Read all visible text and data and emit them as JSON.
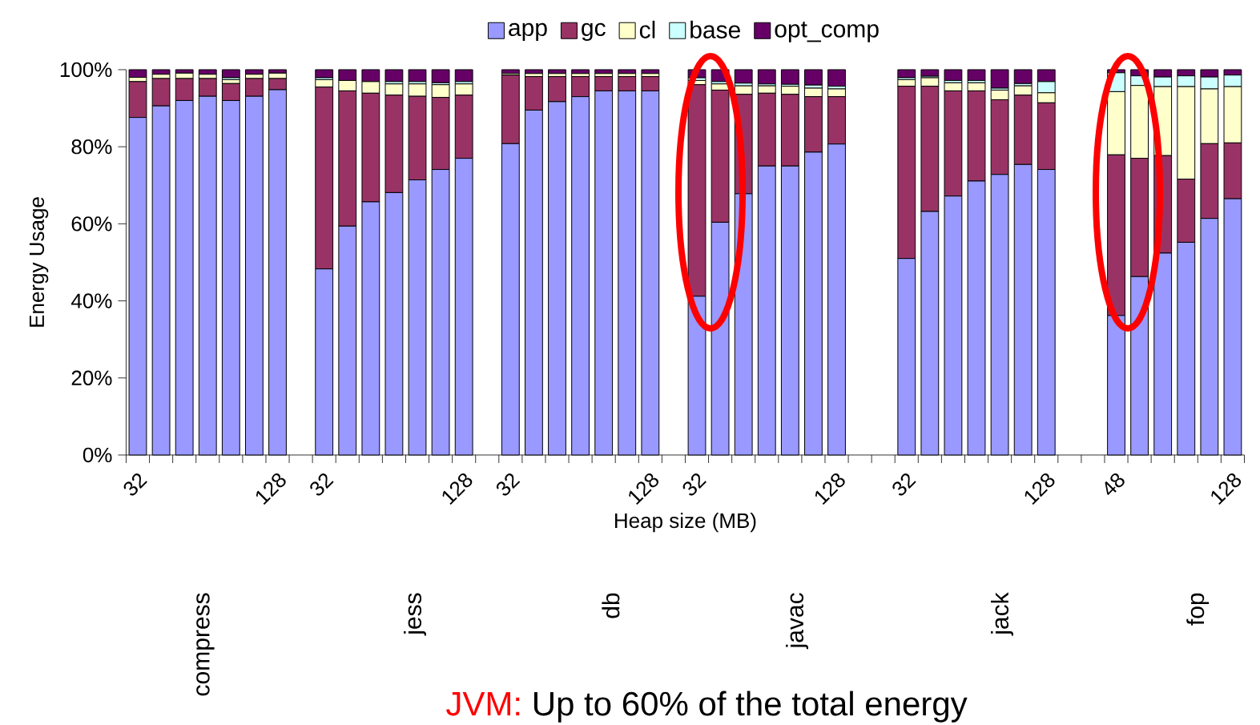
{
  "chart_data": {
    "type": "bar",
    "stacked": true,
    "xlabel": "Heap size (MB)",
    "ylabel": "Energy Usage",
    "legend": "top",
    "grid": false,
    "categories": [
      "32",
      null,
      null,
      null,
      null,
      null,
      "128",
      null,
      "32",
      null,
      null,
      null,
      null,
      null,
      "128",
      null,
      "32",
      null,
      null,
      null,
      null,
      null,
      "128",
      null,
      "32",
      null,
      null,
      null,
      null,
      null,
      "128",
      null,
      null,
      "32",
      null,
      null,
      null,
      null,
      null,
      "128",
      null,
      null,
      "48",
      null,
      null,
      null,
      null,
      "128"
    ],
    "series": [
      {
        "name": "app",
        "color": "#9999ff",
        "values": [
          87.6,
          90.6,
          92.0,
          93.1,
          92.0,
          93.1,
          94.8,
          null,
          48.3,
          59.4,
          65.7,
          68.1,
          71.4,
          74.1,
          77.0,
          null,
          80.8,
          89.5,
          91.7,
          93.0,
          94.5,
          94.5,
          94.5,
          null,
          41.2,
          60.4,
          67.8,
          75.0,
          75.0,
          78.6,
          80.7,
          null,
          null,
          51.0,
          63.2,
          67.2,
          71.1,
          72.8,
          75.4,
          74.1,
          null,
          null,
          36.2,
          46.3,
          52.4,
          55.2,
          61.4,
          66.5
        ]
      },
      {
        "name": "gc",
        "color": "#993366",
        "values": [
          9.3,
          7.1,
          5.7,
          4.6,
          4.4,
          4.6,
          2.9,
          null,
          47.2,
          35.1,
          28.2,
          25.3,
          21.7,
          18.7,
          16.4,
          null,
          17.8,
          8.7,
          6.5,
          5.2,
          3.7,
          3.7,
          3.7,
          null,
          54.9,
          34.3,
          25.8,
          18.9,
          18.6,
          14.4,
          12.3,
          null,
          null,
          44.7,
          32.5,
          27.3,
          23.4,
          19.4,
          18.0,
          17.3,
          null,
          null,
          41.7,
          30.7,
          25.3,
          16.4,
          19.4,
          14.5
        ]
      },
      {
        "name": "cl",
        "color": "#ffffcc",
        "values": [
          1.1,
          1.1,
          1.4,
          1.1,
          1.0,
          1.1,
          1.4,
          null,
          1.9,
          2.7,
          3.0,
          2.9,
          3.2,
          3.3,
          2.9,
          null,
          0.4,
          0.8,
          0.8,
          0.8,
          0.8,
          0.8,
          0.8,
          null,
          1.1,
          1.6,
          2.2,
          1.9,
          2.1,
          2.2,
          2.0,
          null,
          null,
          1.7,
          2.2,
          2.1,
          2.1,
          2.5,
          2.4,
          2.6,
          null,
          null,
          16.4,
          18.9,
          17.9,
          24.0,
          14.2,
          14.6
        ]
      },
      {
        "name": "base",
        "color": "#ccffff",
        "values": [
          0,
          0,
          0,
          0,
          0.5,
          0,
          0,
          null,
          0.5,
          0,
          0,
          0.6,
          0.6,
          0.5,
          0.6,
          null,
          0,
          0,
          0,
          0,
          0,
          0,
          0,
          null,
          0.7,
          0.6,
          0.7,
          0.5,
          0.5,
          0.8,
          0.7,
          null,
          null,
          0.5,
          0.4,
          0.6,
          0.6,
          0.5,
          0.6,
          2.9,
          null,
          null,
          4.9,
          2.5,
          2.5,
          2.8,
          3.1,
          3.0
        ]
      },
      {
        "name": "opt_comp",
        "color": "#660066",
        "values": [
          2.0,
          1.2,
          0.9,
          1.2,
          2.1,
          1.2,
          0.9,
          null,
          2.1,
          2.8,
          3.1,
          3.1,
          3.1,
          3.4,
          3.1,
          null,
          1.0,
          1.0,
          1.0,
          1.0,
          1.0,
          1.0,
          1.0,
          null,
          2.1,
          3.1,
          3.5,
          3.7,
          3.8,
          4.0,
          4.3,
          null,
          null,
          2.1,
          1.7,
          2.8,
          2.8,
          4.8,
          3.6,
          3.1,
          null,
          null,
          0.8,
          1.6,
          1.9,
          1.6,
          1.9,
          1.4
        ]
      }
    ],
    "ylim": [
      0,
      100
    ],
    "yticks": [
      {
        "value": 0,
        "label": "0%"
      },
      {
        "value": 20,
        "label": "20%"
      },
      {
        "value": 40,
        "label": "40%"
      },
      {
        "value": 60,
        "label": "60%"
      },
      {
        "value": 80,
        "label": "80%"
      },
      {
        "value": 100,
        "label": "100%"
      }
    ],
    "annotations": [
      "compress",
      "jess",
      "db",
      "javac",
      "jack",
      "fop",
      "JVM:",
      "Up to 60% of the total energy"
    ]
  }
}
